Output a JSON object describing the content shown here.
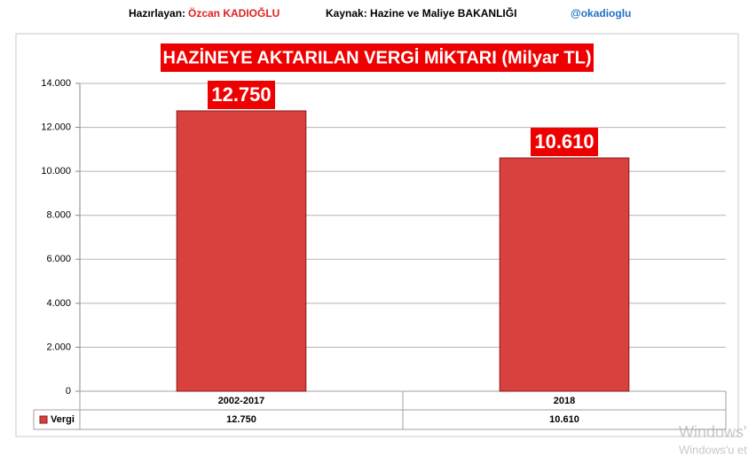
{
  "header": {
    "prepared_label": "Hazırlayan:",
    "prepared_name": "Özcan KADIOĞLU",
    "source": "Kaynak: Hazine ve Maliye  BAKANLIĞI",
    "handle": "@okadioglu"
  },
  "chart_data": {
    "type": "bar",
    "title": "HAZİNEYE AKTARILAN VERGİ MİKTARI (Milyar TL)",
    "categories": [
      "2002-2017",
      "2018"
    ],
    "series": [
      {
        "name": "Vergi",
        "color": "#d8413e",
        "values": [
          12750,
          10610
        ],
        "value_labels": [
          "12.750",
          "10.610"
        ]
      }
    ],
    "ylim": [
      0,
      14000
    ],
    "yticks": [
      0,
      {
        "value": 2000,
        "label": "2.000"
      },
      {
        "value": 4000,
        "label": "4.000"
      },
      {
        "value": 6000,
        "label": "6.000"
      },
      {
        "value": 8000,
        "label": "8.000"
      },
      {
        "value": 10000,
        "label": "10.000"
      },
      {
        "value": 12000,
        "label": "12.000"
      },
      {
        "value": 14000,
        "label": "14.000"
      }
    ],
    "grid": true,
    "data_table": true
  },
  "watermark": [
    "Windows'",
    "Windows'u et"
  ]
}
